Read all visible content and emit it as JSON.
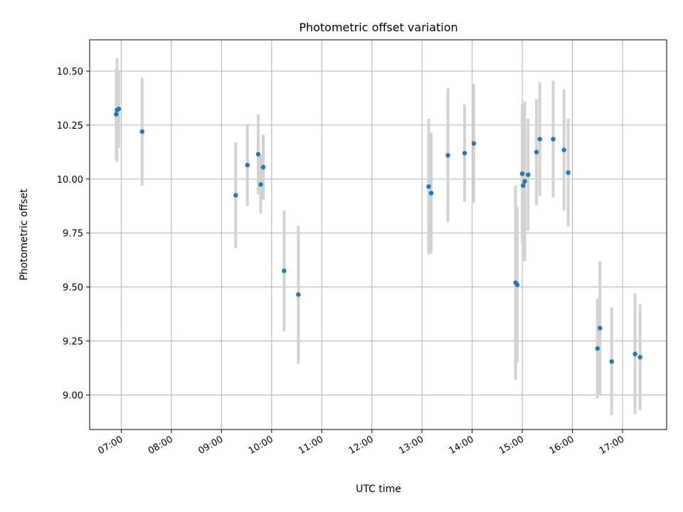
{
  "chart_data": {
    "type": "scatter",
    "title": "Photometric offset variation",
    "xlabel": "UTC time",
    "ylabel": "Photometric offset",
    "x_tick_labels": [
      "07:00",
      "08:00",
      "09:00",
      "10:00",
      "11:00",
      "12:00",
      "13:00",
      "14:00",
      "15:00",
      "16:00",
      "17:00"
    ],
    "y_tick_labels": [
      "9.00",
      "9.25",
      "9.50",
      "9.75",
      "10.00",
      "10.25",
      "10.50"
    ],
    "x_tick_hours": [
      7,
      8,
      9,
      10,
      11,
      12,
      13,
      14,
      15,
      16,
      17
    ],
    "y_ticks": [
      9.0,
      9.25,
      9.5,
      9.75,
      10.0,
      10.25,
      10.5
    ],
    "xlim_hours": [
      6.37,
      17.88
    ],
    "ylim": [
      8.84,
      10.645
    ],
    "grid": true,
    "point_color": "#1f77b4",
    "errorbar_color": "#d3d3d3",
    "points": [
      {
        "t": "06:54",
        "y": 10.3,
        "err": 0.21
      },
      {
        "t": "06:55",
        "y": 10.32,
        "err": 0.24
      },
      {
        "t": "06:57",
        "y": 10.325,
        "err": 0.18
      },
      {
        "t": "07:25",
        "y": 10.22,
        "err": 0.25
      },
      {
        "t": "09:17",
        "y": 9.925,
        "err": 0.245
      },
      {
        "t": "09:31",
        "y": 10.065,
        "err": 0.19
      },
      {
        "t": "09:44",
        "y": 10.115,
        "err": 0.185
      },
      {
        "t": "09:47",
        "y": 9.975,
        "err": 0.135
      },
      {
        "t": "09:50",
        "y": 10.055,
        "err": 0.15
      },
      {
        "t": "10:15",
        "y": 9.575,
        "err": 0.28
      },
      {
        "t": "10:32",
        "y": 9.465,
        "err": 0.32
      },
      {
        "t": "13:08",
        "y": 9.965,
        "err": 0.315
      },
      {
        "t": "13:11",
        "y": 9.935,
        "err": 0.28
      },
      {
        "t": "13:31",
        "y": 10.11,
        "err": 0.31
      },
      {
        "t": "13:51",
        "y": 10.12,
        "err": 0.225
      },
      {
        "t": "14:02",
        "y": 10.165,
        "err": 0.275
      },
      {
        "t": "14:52",
        "y": 9.52,
        "err": 0.45
      },
      {
        "t": "14:54",
        "y": 9.51,
        "err": 0.36
      },
      {
        "t": "15:00",
        "y": 10.025,
        "err": 0.32
      },
      {
        "t": "15:01",
        "y": 9.97,
        "err": 0.35
      },
      {
        "t": "15:03",
        "y": 9.99,
        "err": 0.37
      },
      {
        "t": "15:07",
        "y": 10.02,
        "err": 0.26
      },
      {
        "t": "15:17",
        "y": 10.125,
        "err": 0.245
      },
      {
        "t": "15:21",
        "y": 10.185,
        "err": 0.265
      },
      {
        "t": "15:37",
        "y": 10.185,
        "err": 0.27
      },
      {
        "t": "15:50",
        "y": 10.135,
        "err": 0.28
      },
      {
        "t": "15:55",
        "y": 10.03,
        "err": 0.25
      },
      {
        "t": "16:30",
        "y": 9.215,
        "err": 0.23
      },
      {
        "t": "16:33",
        "y": 9.31,
        "err": 0.31
      },
      {
        "t": "16:47",
        "y": 9.155,
        "err": 0.25
      },
      {
        "t": "17:15",
        "y": 9.19,
        "err": 0.28
      },
      {
        "t": "17:21",
        "y": 9.175,
        "err": 0.245
      }
    ]
  }
}
